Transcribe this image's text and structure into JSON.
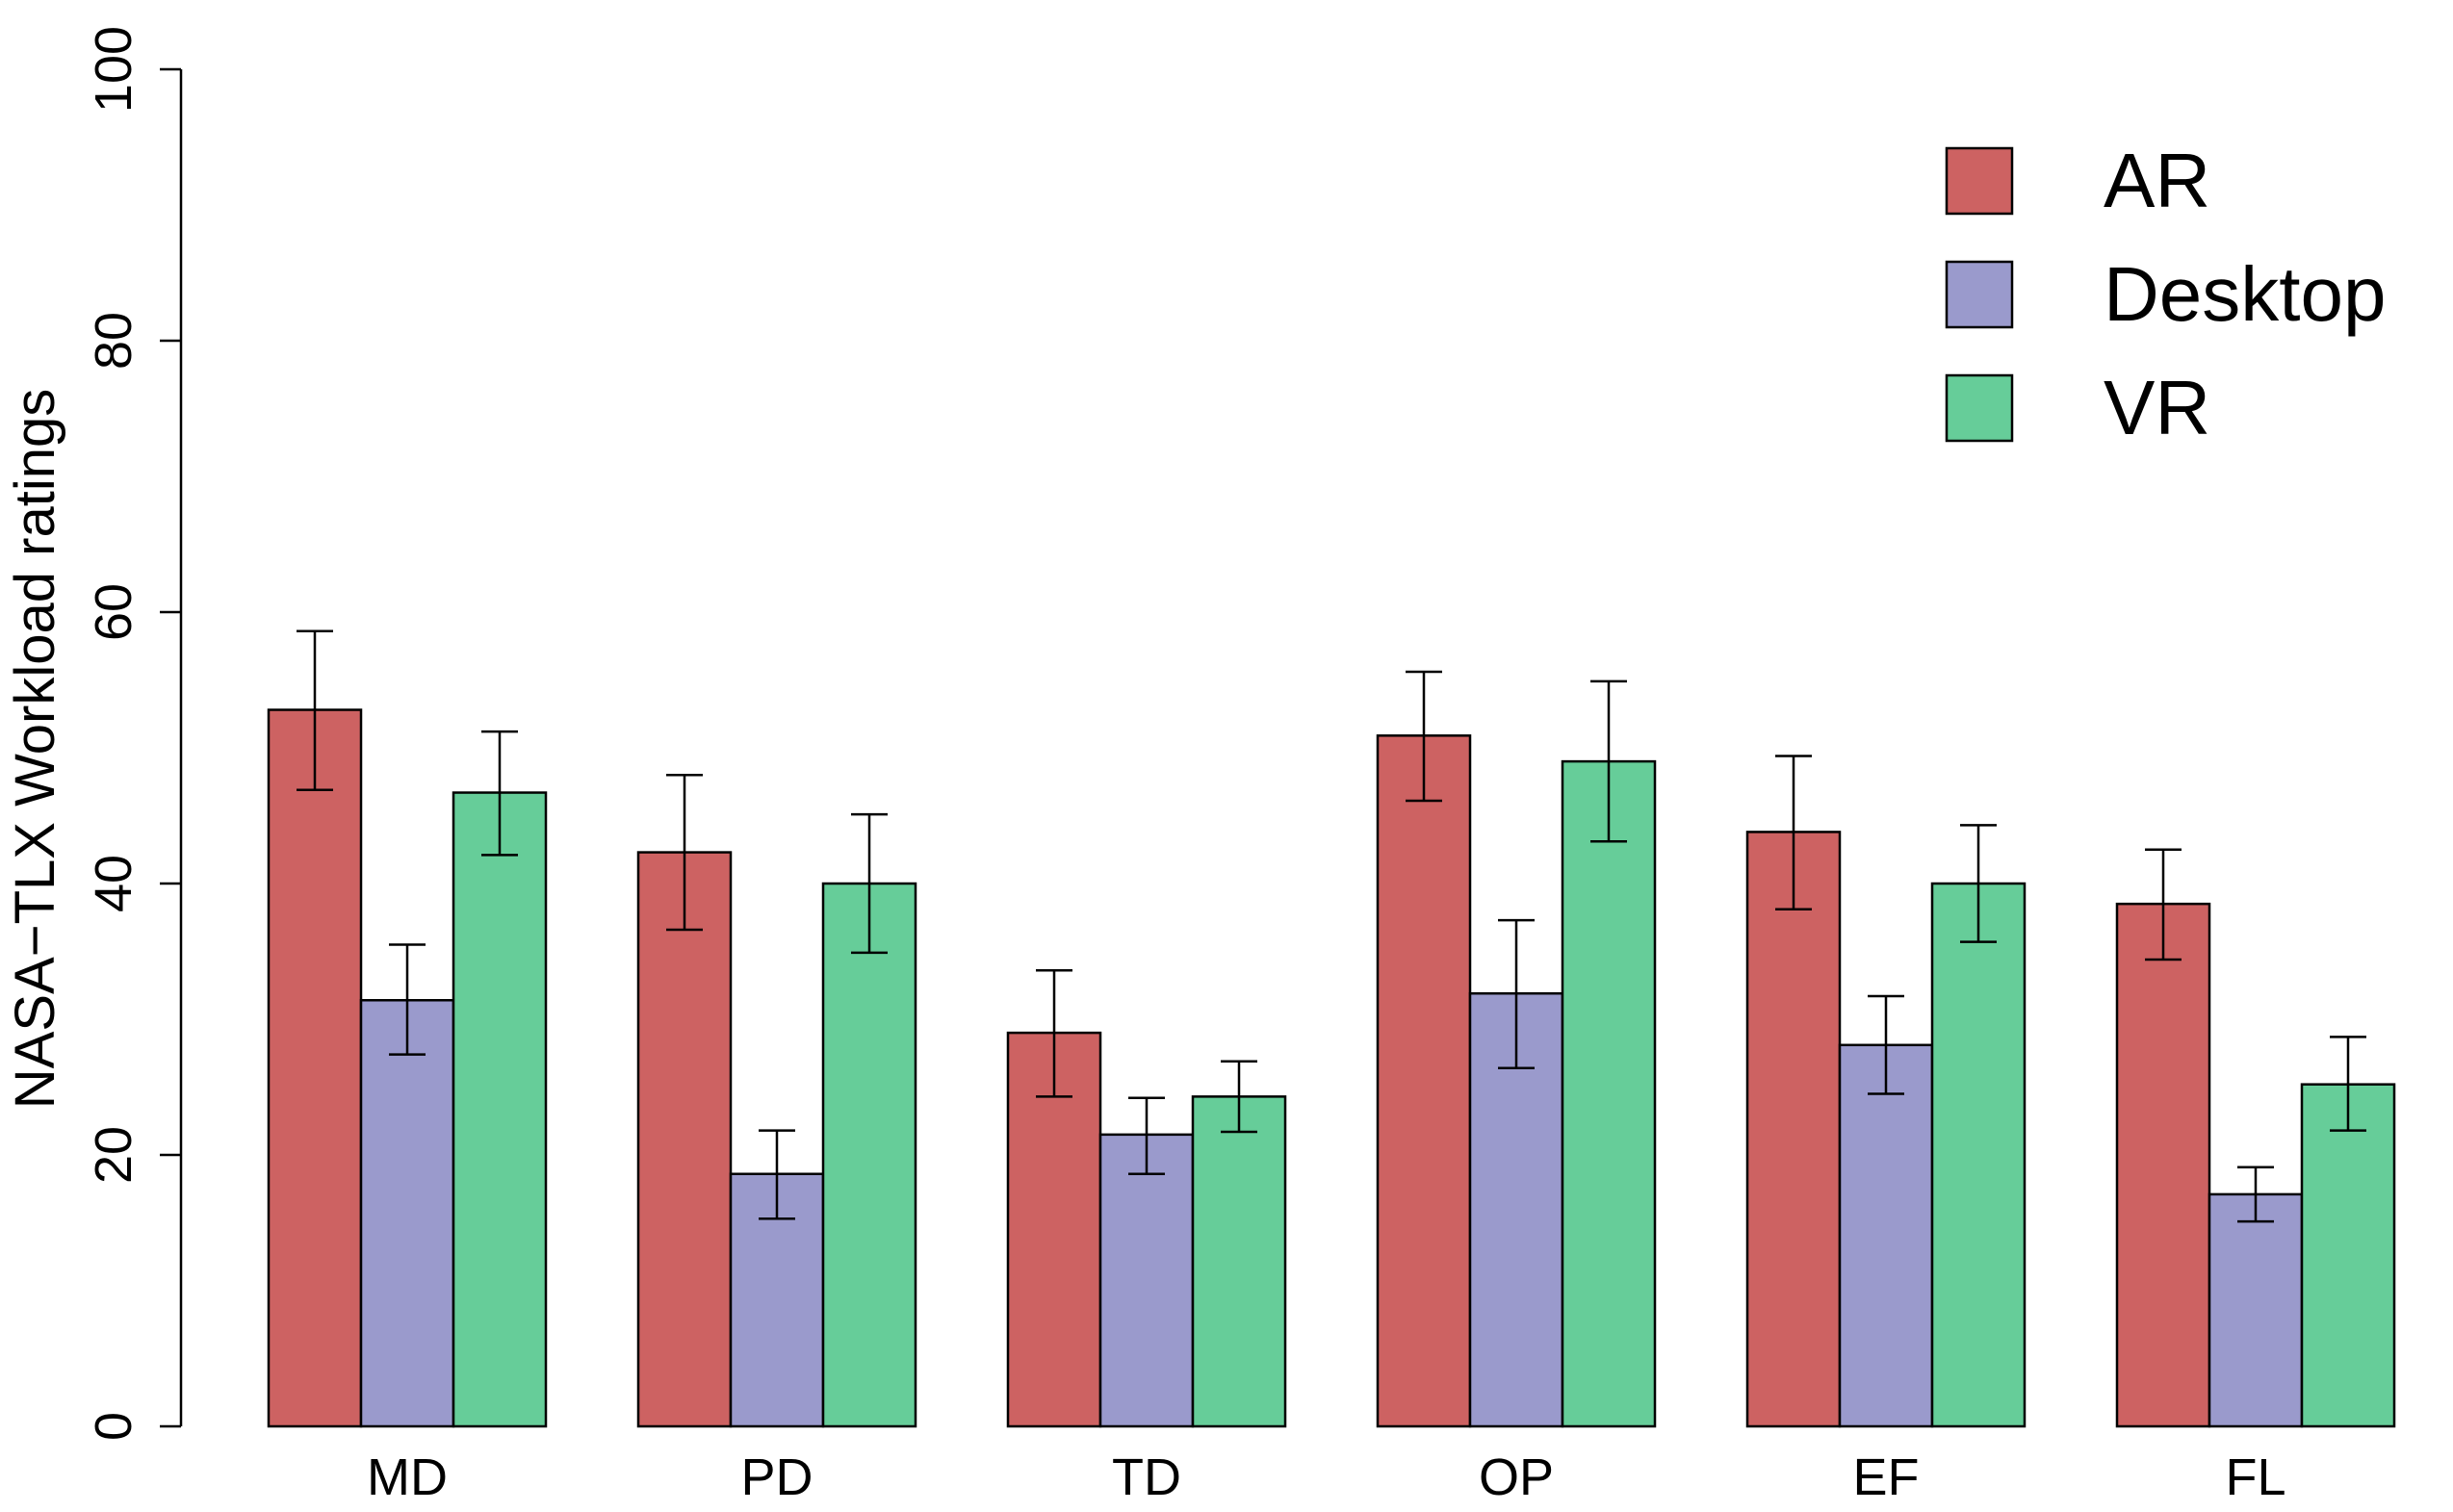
{
  "chart_data": {
    "type": "bar",
    "title": "",
    "xlabel": "",
    "ylabel": "NASA−TLX Workload ratings",
    "ylim": [
      0,
      100
    ],
    "yticks": [
      "0",
      "20",
      "40",
      "60",
      "80",
      "100"
    ],
    "categories": [
      "MD",
      "PD",
      "TD",
      "OP",
      "EF",
      "FL"
    ],
    "legend_position": "top-right",
    "series": [
      {
        "name": "AR",
        "color": "#cd6262",
        "values": [
          52.8,
          42.3,
          29.0,
          50.9,
          43.8,
          38.5
        ],
        "err_low": [
          46.9,
          36.6,
          24.3,
          46.1,
          38.1,
          34.4
        ],
        "err_high": [
          58.6,
          48.0,
          33.6,
          55.6,
          49.4,
          42.5
        ]
      },
      {
        "name": "Desktop",
        "color": "#9a9acc",
        "values": [
          31.4,
          18.6,
          21.5,
          31.9,
          28.1,
          17.1
        ],
        "err_low": [
          27.4,
          15.3,
          18.6,
          26.4,
          24.5,
          15.1
        ],
        "err_high": [
          35.5,
          21.8,
          24.2,
          37.3,
          31.7,
          19.1
        ]
      },
      {
        "name": "VR",
        "color": "#66cd99",
        "values": [
          46.7,
          40.0,
          24.3,
          49.0,
          40.0,
          25.2
        ],
        "err_low": [
          42.1,
          34.9,
          21.7,
          43.1,
          35.7,
          21.8
        ],
        "err_high": [
          51.2,
          45.1,
          26.9,
          54.9,
          44.3,
          28.7
        ]
      }
    ]
  }
}
